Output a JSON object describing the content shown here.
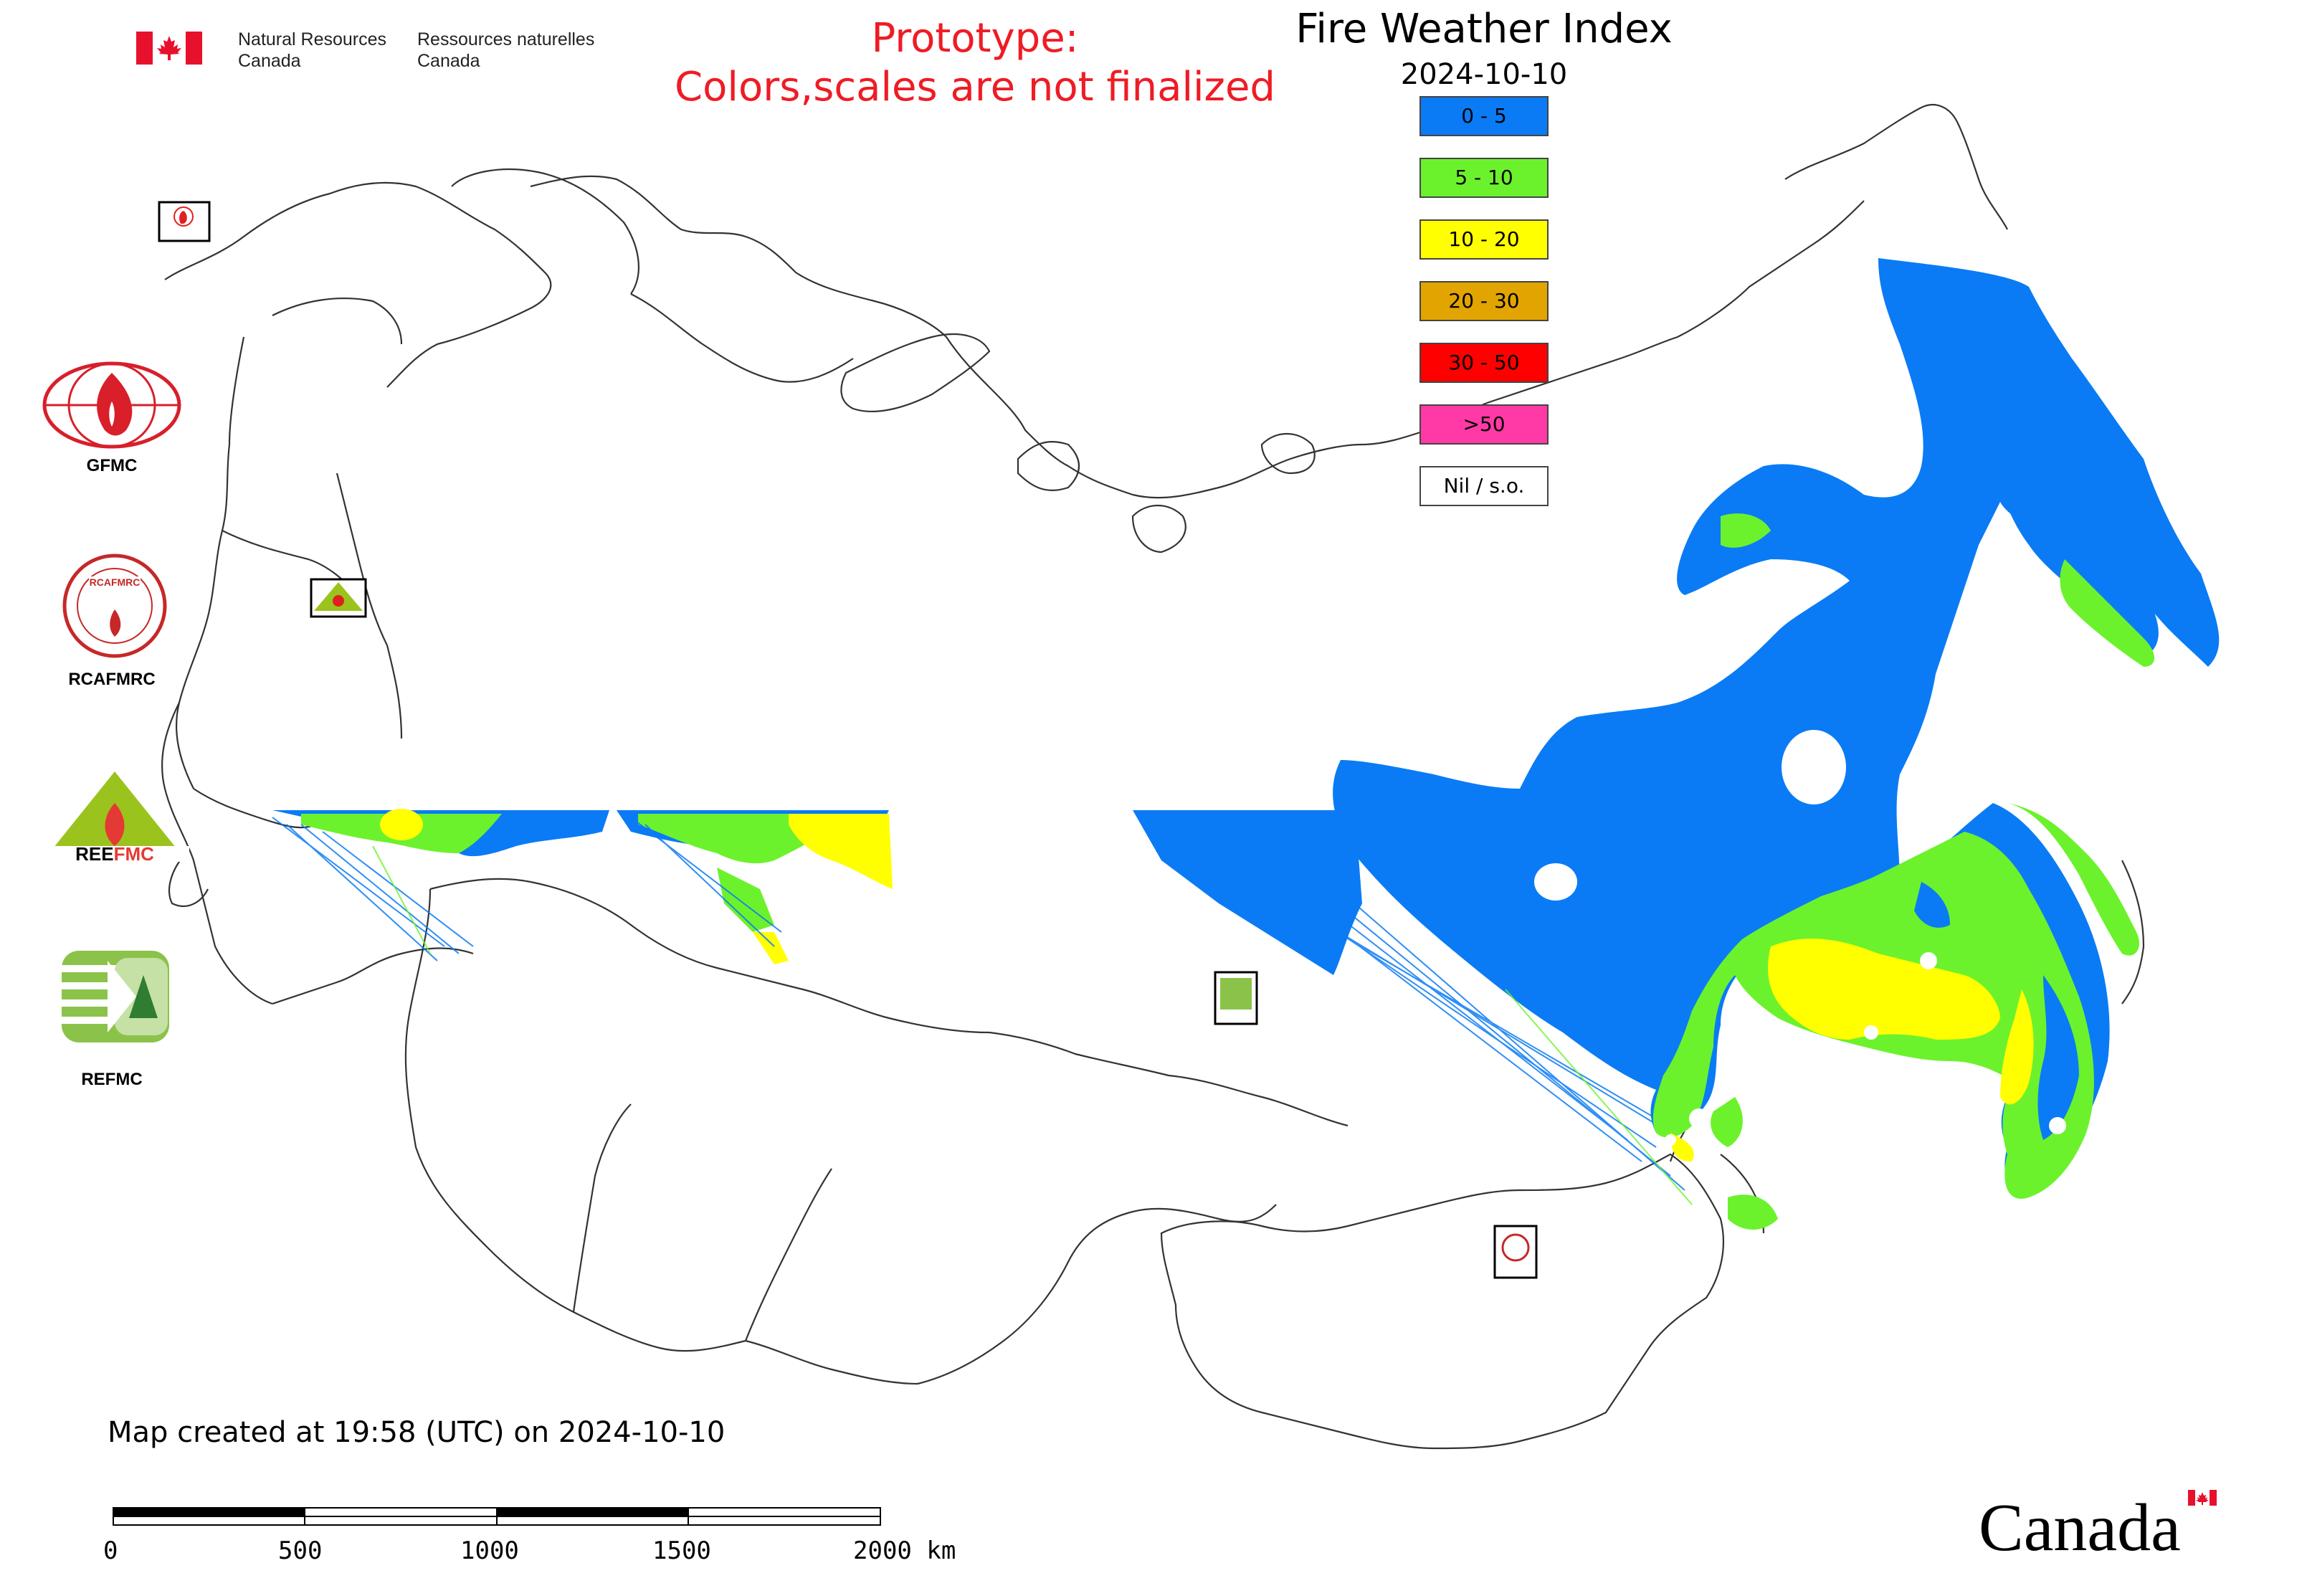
{
  "header": {
    "org_en_line1": "Natural Resources",
    "org_en_line2": "Canada",
    "org_fr_line1": "Ressources naturelles",
    "org_fr_line2": "Canada",
    "prototype_line1": "Prototype:",
    "prototype_line2": "Colors,scales are not finalized",
    "title": "Fire Weather Index",
    "date": "2024-10-10"
  },
  "legend": [
    {
      "label": "0 - 5",
      "color": "#0a7bf5"
    },
    {
      "label": "5 - 10",
      "color": "#6cf22c"
    },
    {
      "label": "10 - 20",
      "color": "#ffff00"
    },
    {
      "label": "20 - 30",
      "color": "#e2a400"
    },
    {
      "label": "30 - 50",
      "color": "#ff0000"
    },
    {
      "label": ">50",
      "color": "#ff3aa6"
    },
    {
      "label": "Nil / s.o.",
      "color": "#ffffff"
    }
  ],
  "logos": {
    "gfmc": "GFMC",
    "rcafmrc": "RCAFMRC",
    "reefmc": "REEFMC",
    "refmc": "REFMC"
  },
  "footer": {
    "created": "Map created at 19:58 (UTC) on 2024-10-10",
    "scale_labels": [
      "0",
      "500",
      "1000",
      "1500",
      "2000 km"
    ],
    "canada_wordmark": "Canada"
  }
}
